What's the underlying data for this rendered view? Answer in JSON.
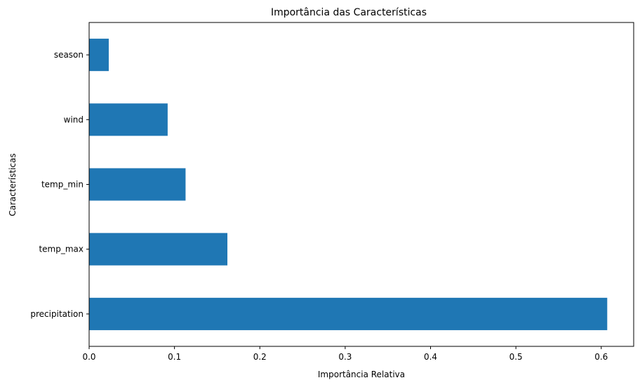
{
  "chart_data": {
    "type": "bar",
    "orientation": "horizontal",
    "title": "Importância das Características",
    "xlabel": "Importância Relativa",
    "ylabel": "Características",
    "categories": [
      "precipitation",
      "temp_max",
      "temp_min",
      "wind",
      "season"
    ],
    "values": [
      0.607,
      0.162,
      0.113,
      0.092,
      0.023
    ],
    "xlim": [
      0,
      0.638
    ],
    "xticks": [
      "0.0",
      "0.1",
      "0.2",
      "0.3",
      "0.4",
      "0.5",
      "0.6"
    ],
    "grid": false,
    "legend": "none",
    "colors": {
      "bar": "#1f77b4",
      "axes": "#000000"
    }
  }
}
